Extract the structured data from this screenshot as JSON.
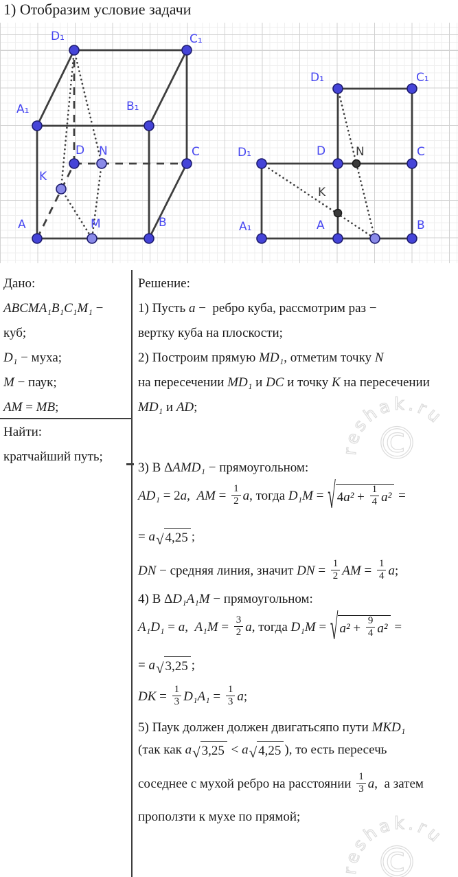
{
  "page": {
    "title": "1) Отобразим условие задачи",
    "watermark_text": "reshak.ru",
    "watermark_symbol": "©"
  },
  "diagram": {
    "left_figure": {
      "description_labels": {
        "A": "A",
        "B": "B",
        "C": "C",
        "D": "D",
        "A1": "A₁",
        "B1": "B₁",
        "C1": "C₁",
        "D1": "D₁",
        "K": "K",
        "M": "M",
        "N": "N"
      }
    },
    "right_figure": {
      "description_labels": {
        "D1_top": "D₁",
        "C1": "C₁",
        "D1_left": "D₁",
        "D": "D",
        "N": "N",
        "C": "C",
        "K": "K",
        "A1": "A₁",
        "A": "A",
        "B": "B"
      }
    },
    "colors": {
      "point_blue": "#4544d8",
      "point_light": "#8a8ae8",
      "point_dark": "#3a3a3a",
      "label_blue": "#4747f0",
      "label_dark": "#3b3b3b",
      "line": "#3e3e3e"
    }
  },
  "given": {
    "heading": "Дано:",
    "lines": [
      [
        [
          "m",
          "ABCMA₁B₁C₁M₁"
        ],
        [
          "t",
          " −"
        ]
      ],
      [
        [
          "t",
          "куб;"
        ]
      ],
      [
        [
          "m",
          "D₁"
        ],
        [
          "t",
          " − муха;"
        ]
      ],
      [
        [
          "m",
          "M"
        ],
        [
          "t",
          " − паук;"
        ]
      ],
      [
        [
          "m",
          "AM"
        ],
        [
          "t",
          " = "
        ],
        [
          "m",
          "MB"
        ],
        [
          "t",
          ";"
        ]
      ]
    ],
    "find_heading": "Найти:",
    "find_lines": [
      [
        [
          "t",
          "кратчайший путь;"
        ]
      ]
    ]
  },
  "solution": {
    "heading": "Решение:",
    "lines": [
      [
        [
          "t",
          "1) Пусть "
        ],
        [
          "m",
          "a"
        ],
        [
          "t",
          " −  ребро куба, рассмотрим раз −"
        ]
      ],
      [
        [
          "t",
          "вертку куба на плоскости;"
        ]
      ],
      [
        [
          "t",
          "2) Построим прямую "
        ],
        [
          "m",
          "MD₁"
        ],
        [
          "t",
          ", отметим точку "
        ],
        [
          "m",
          "N"
        ]
      ],
      [
        [
          "t",
          "на пересечении "
        ],
        [
          "m",
          "MD₁"
        ],
        [
          "t",
          " и "
        ],
        [
          "m",
          "DC"
        ],
        [
          "t",
          " и точку "
        ],
        [
          "m",
          "K"
        ],
        [
          "t",
          " на пересечении"
        ]
      ],
      [
        [
          "m",
          "MD₁"
        ],
        [
          "t",
          " и "
        ],
        [
          "m",
          "AD"
        ],
        [
          "t",
          ";"
        ]
      ],
      [
        [
          "t",
          "3) В Δ"
        ],
        [
          "m",
          "AMD₁"
        ],
        [
          "t",
          " − прямоугольном:"
        ]
      ],
      [
        [
          "m",
          "AD₁"
        ],
        [
          "t",
          " = 2"
        ],
        [
          "m",
          "a"
        ],
        [
          "t",
          ",  "
        ],
        [
          "m",
          "AM"
        ],
        [
          "t",
          " = "
        ],
        [
          "frac",
          "1",
          "2"
        ],
        [
          "m",
          "a"
        ],
        [
          "t",
          ", тогда "
        ],
        [
          "m",
          "D₁M"
        ],
        [
          "t",
          " = "
        ],
        [
          "sqrt",
          [
            [
              "t",
              "4"
            ],
            [
              "m",
              "a²"
            ],
            [
              "t",
              " + "
            ],
            [
              "frac",
              "1",
              "4"
            ],
            [
              "m",
              "a²"
            ]
          ]
        ],
        [
          "t",
          " ="
        ]
      ],
      [
        [
          "t",
          "= "
        ],
        [
          "m",
          "a"
        ],
        [
          "sqrt",
          [
            [
              "t",
              "4,25"
            ]
          ]
        ],
        [
          "t",
          ";"
        ]
      ],
      [
        [
          "m",
          "DN"
        ],
        [
          "t",
          " − средняя линия, значит "
        ],
        [
          "m",
          "DN"
        ],
        [
          "t",
          " = "
        ],
        [
          "frac",
          "1",
          "2"
        ],
        [
          "m",
          "AM"
        ],
        [
          "t",
          " = "
        ],
        [
          "frac",
          "1",
          "4"
        ],
        [
          "m",
          "a"
        ],
        [
          "t",
          ";"
        ]
      ],
      [
        [
          "t",
          "4) В Δ"
        ],
        [
          "m",
          "D₁A₁M"
        ],
        [
          "t",
          " − прямоугольном:"
        ]
      ],
      [
        [
          "m",
          "A₁D₁"
        ],
        [
          "t",
          " = "
        ],
        [
          "m",
          "a"
        ],
        [
          "t",
          ",  "
        ],
        [
          "m",
          "A₁M"
        ],
        [
          "t",
          " = "
        ],
        [
          "frac",
          "3",
          "2"
        ],
        [
          "m",
          "a"
        ],
        [
          "t",
          ", тогда "
        ],
        [
          "m",
          "D₁M"
        ],
        [
          "t",
          " = "
        ],
        [
          "sqrt",
          [
            [
              "m",
              "a²"
            ],
            [
              "t",
              " + "
            ],
            [
              "frac",
              "9",
              "4"
            ],
            [
              "m",
              "a²"
            ]
          ]
        ],
        [
          "t",
          " ="
        ]
      ],
      [
        [
          "t",
          "= "
        ],
        [
          "m",
          "a"
        ],
        [
          "sqrt",
          [
            [
              "t",
              "3,25"
            ]
          ]
        ],
        [
          "t",
          ";"
        ]
      ],
      [
        [
          "m",
          "DK"
        ],
        [
          "t",
          " = "
        ],
        [
          "frac",
          "1",
          "3"
        ],
        [
          "m",
          "D₁A₁"
        ],
        [
          "t",
          " = "
        ],
        [
          "frac",
          "1",
          "3"
        ],
        [
          "m",
          "a"
        ],
        [
          "t",
          ";"
        ]
      ],
      [
        [
          "t",
          "5) Паук должен должен двигатьсяпо пути "
        ],
        [
          "m",
          "MKD₁"
        ]
      ],
      [
        [
          "t",
          "(так как "
        ],
        [
          "m",
          "a"
        ],
        [
          "sqrt",
          [
            [
              "t",
              "3,25"
            ]
          ]
        ],
        [
          "t",
          " < "
        ],
        [
          "m",
          "a"
        ],
        [
          "sqrt",
          [
            [
              "t",
              "4,25"
            ]
          ]
        ],
        [
          "t",
          "), то есть пересечь"
        ]
      ],
      [
        [
          "t",
          "соседнее с мухой ребро на расстоянии "
        ],
        [
          "frac",
          "1",
          "3"
        ],
        [
          "m",
          "a"
        ],
        [
          "t",
          ",  а затем"
        ]
      ],
      [
        [
          "t",
          "проползти к мухе по прямой;"
        ]
      ]
    ]
  }
}
